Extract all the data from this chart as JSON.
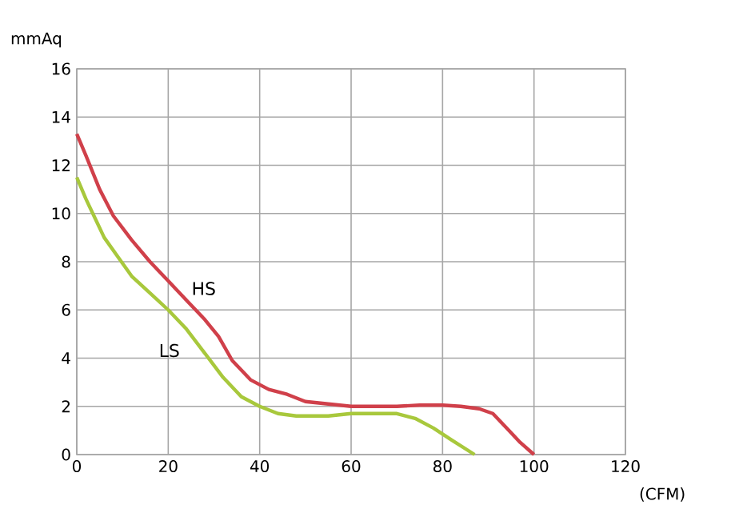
{
  "chart_data": {
    "type": "line",
    "xlabel": "(CFM)",
    "ylabel": "mmAq",
    "xlim": [
      0,
      120
    ],
    "xticks": [
      0,
      20,
      40,
      60,
      80,
      100,
      120
    ],
    "ylim": [
      0,
      16
    ],
    "yticks": [
      0,
      2,
      4,
      6,
      8,
      10,
      12,
      14,
      16
    ],
    "grid": true,
    "marker": "none",
    "line_style": "solid",
    "series": [
      {
        "name": "HS",
        "color": "#d0404a",
        "x": [
          0,
          2,
          5,
          8,
          12,
          16,
          20,
          24,
          28,
          31,
          34,
          38,
          42,
          46,
          50,
          55,
          60,
          65,
          70,
          75,
          80,
          84,
          88,
          91,
          94,
          97,
          100
        ],
        "values": [
          13.3,
          12.4,
          11,
          9.9,
          8.9,
          8,
          7.2,
          6.4,
          5.6,
          4.9,
          3.9,
          3.1,
          2.7,
          2.5,
          2.2,
          2.1,
          2,
          2,
          2,
          2.05,
          2.05,
          2,
          1.9,
          1.7,
          1.1,
          0.5,
          0
        ]
      },
      {
        "name": "LS",
        "color": "#a8c83c",
        "x": [
          0,
          2,
          4,
          6,
          9,
          12,
          16,
          20,
          24,
          28,
          32,
          36,
          40,
          44,
          48,
          55,
          60,
          65,
          70,
          74,
          78,
          82,
          87
        ],
        "values": [
          11.5,
          10.6,
          9.8,
          9,
          8.2,
          7.4,
          6.7,
          6,
          5.2,
          4.2,
          3.2,
          2.4,
          2,
          1.7,
          1.6,
          1.6,
          1.7,
          1.7,
          1.7,
          1.5,
          1.1,
          0.6,
          0
        ]
      }
    ]
  }
}
